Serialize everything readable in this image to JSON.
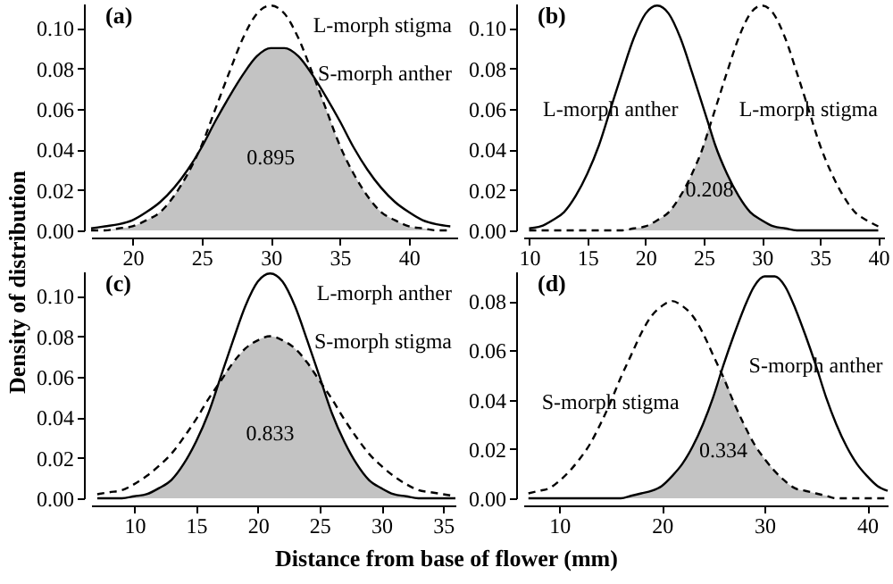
{
  "chart_data": [
    {
      "type": "line",
      "title": "(a)",
      "ylabel": "Density of distribution",
      "x": [
        17,
        18,
        19,
        20,
        21,
        22,
        23,
        24,
        25,
        26,
        27,
        28,
        29,
        30,
        31,
        32,
        33,
        34,
        35,
        36,
        37,
        38,
        39,
        40,
        41,
        42,
        43
      ],
      "xlim": [
        17,
        43.5
      ],
      "xticks": [
        20,
        25,
        30,
        35,
        40
      ],
      "ylim": [
        0,
        0.112
      ],
      "yticks": [
        {
          "value": 0,
          "label": "0.00"
        },
        {
          "value": 0.02,
          "label": "0.02"
        },
        {
          "value": 0.04,
          "label": "0.04"
        },
        {
          "value": 0.06,
          "label": "0.06"
        },
        {
          "value": 0.08,
          "label": "0.08"
        },
        {
          "value": 0.1,
          "label": "0.10"
        }
      ],
      "series": [
        {
          "type": "area",
          "color": "#c3c3c3",
          "values": [
            0,
            0,
            0.001,
            0.002,
            0.005,
            0.009,
            0.017,
            0.028,
            0.041,
            0.054,
            0.066,
            0.077,
            0.086,
            0.09,
            0.09,
            0.086,
            0.077,
            0.06,
            0.042,
            0.028,
            0.017,
            0.009,
            0.005,
            0.002,
            0.001,
            0,
            0
          ]
        },
        {
          "type": "line",
          "color": "#000000",
          "line_style": "dashed",
          "values": [
            0,
            0,
            0.001,
            0.002,
            0.005,
            0.009,
            0.017,
            0.028,
            0.042,
            0.06,
            0.078,
            0.095,
            0.107,
            0.111,
            0.107,
            0.095,
            0.078,
            0.06,
            0.042,
            0.028,
            0.017,
            0.009,
            0.005,
            0.002,
            0.001,
            0,
            0
          ]
        },
        {
          "type": "line",
          "color": "#000000",
          "line_style": "solid",
          "values": [
            0.001,
            0.002,
            0.003,
            0.005,
            0.009,
            0.014,
            0.021,
            0.03,
            0.041,
            0.054,
            0.066,
            0.077,
            0.086,
            0.09,
            0.09,
            0.086,
            0.077,
            0.066,
            0.054,
            0.041,
            0.03,
            0.021,
            0.014,
            0.009,
            0.005,
            0.003,
            0.002
          ]
        }
      ],
      "annotations": [
        "L-morph stigma",
        "S-morph anther",
        "0.895"
      ]
    },
    {
      "type": "line",
      "title": "(b)",
      "x": [
        10,
        11,
        12,
        13,
        14,
        15,
        16,
        17,
        18,
        19,
        20,
        21,
        22,
        23,
        24,
        25,
        25.5,
        26,
        27,
        28,
        29,
        30,
        31,
        32,
        33,
        34,
        35,
        36,
        37,
        38,
        39,
        40
      ],
      "xlim": [
        9.5,
        40.5
      ],
      "xticks": [
        10,
        15,
        20,
        25,
        30,
        35,
        40
      ],
      "ylim": [
        0,
        0.112
      ],
      "yticks": [
        {
          "value": 0,
          "label": "0.00"
        },
        {
          "value": 0.02,
          "label": "0.02"
        },
        {
          "value": 0.04,
          "label": "0.04"
        },
        {
          "value": 0.06,
          "label": "0.06"
        },
        {
          "value": 0.08,
          "label": "0.08"
        },
        {
          "value": 0.1,
          "label": "0.10"
        }
      ],
      "series": [
        {
          "type": "area",
          "color": "#c3c3c3",
          "values": [
            0,
            0,
            0,
            0,
            0,
            0,
            0,
            0,
            0,
            0.001,
            0.002,
            0.005,
            0.009,
            0.017,
            0.028,
            0.042,
            0.051,
            0.042,
            0.028,
            0.017,
            0.009,
            0.005,
            0.002,
            0.001,
            0,
            0,
            0,
            0,
            0,
            0,
            0,
            0
          ]
        },
        {
          "type": "line",
          "color": "#000000",
          "line_style": "solid",
          "values": [
            0.001,
            0.002,
            0.005,
            0.009,
            0.017,
            0.028,
            0.042,
            0.06,
            0.078,
            0.095,
            0.107,
            0.111,
            0.107,
            0.095,
            0.078,
            0.06,
            0.051,
            0.042,
            0.028,
            0.017,
            0.009,
            0.005,
            0.002,
            0.001,
            0,
            0,
            0,
            0,
            0,
            0,
            0,
            0
          ]
        },
        {
          "type": "line",
          "color": "#000000",
          "line_style": "dashed",
          "values": [
            0,
            0,
            0,
            0,
            0,
            0,
            0,
            0,
            0,
            0.001,
            0.002,
            0.005,
            0.009,
            0.017,
            0.028,
            0.042,
            0.051,
            0.06,
            0.078,
            0.095,
            0.107,
            0.111,
            0.107,
            0.095,
            0.078,
            0.06,
            0.042,
            0.028,
            0.017,
            0.009,
            0.005,
            0.002
          ]
        }
      ],
      "annotations": [
        {
          "text": "L-morph anther",
          "x": 17,
          "y": 0.06
        },
        {
          "text": "L-morph stigma",
          "x": 34,
          "y": 0.06
        },
        "0.208"
      ]
    },
    {
      "type": "line",
      "title": "(c)",
      "xlabel": "Distance from base of flower (mm)",
      "x": [
        7,
        8,
        9,
        10,
        11,
        12,
        13,
        14,
        15,
        16,
        17,
        18,
        19,
        20,
        21,
        22,
        23,
        24,
        25,
        26,
        27,
        28,
        29,
        30,
        31,
        32,
        33,
        34,
        35,
        36
      ],
      "xlim": [
        6.5,
        36
      ],
      "xticks": [
        10,
        15,
        20,
        25,
        30,
        35
      ],
      "ylim": [
        0,
        0.112
      ],
      "yticks": [
        {
          "value": 0,
          "label": "0.00"
        },
        {
          "value": 0.02,
          "label": "0.02"
        },
        {
          "value": 0.04,
          "label": "0.04"
        },
        {
          "value": 0.06,
          "label": "0.06"
        },
        {
          "value": 0.08,
          "label": "0.08"
        },
        {
          "value": 0.1,
          "label": "0.10"
        }
      ],
      "series": [
        {
          "type": "area",
          "color": "#c3c3c3",
          "values": [
            0,
            0,
            0,
            0.001,
            0.002,
            0.005,
            0.009,
            0.017,
            0.028,
            0.042,
            0.058,
            0.067,
            0.074,
            0.078,
            0.08,
            0.078,
            0.074,
            0.067,
            0.058,
            0.042,
            0.028,
            0.017,
            0.009,
            0.005,
            0.002,
            0.001,
            0,
            0,
            0,
            0
          ]
        },
        {
          "type": "line",
          "color": "#000000",
          "line_style": "solid",
          "values": [
            0,
            0,
            0,
            0.001,
            0.002,
            0.005,
            0.009,
            0.017,
            0.028,
            0.042,
            0.06,
            0.078,
            0.095,
            0.107,
            0.111,
            0.107,
            0.095,
            0.078,
            0.06,
            0.042,
            0.028,
            0.017,
            0.009,
            0.005,
            0.002,
            0.001,
            0,
            0,
            0,
            0
          ]
        },
        {
          "type": "line",
          "color": "#000000",
          "line_style": "dashed",
          "values": [
            0.002,
            0.003,
            0.004,
            0.007,
            0.011,
            0.016,
            0.022,
            0.03,
            0.039,
            0.049,
            0.058,
            0.067,
            0.074,
            0.078,
            0.08,
            0.078,
            0.074,
            0.067,
            0.058,
            0.049,
            0.039,
            0.03,
            0.022,
            0.016,
            0.011,
            0.007,
            0.004,
            0.003,
            0.002,
            0.001
          ]
        }
      ],
      "annotations": [
        "L-morph anther",
        "S-morph stigma",
        "0.833"
      ]
    },
    {
      "type": "line",
      "title": "(d)",
      "x": [
        7,
        8,
        9,
        10,
        11,
        12,
        13,
        14,
        15,
        16,
        17,
        18,
        19,
        20,
        21,
        22,
        23,
        24,
        25,
        26,
        27,
        28,
        29,
        30,
        31,
        32,
        33,
        34,
        35,
        36,
        37,
        38,
        39,
        40,
        41,
        42
      ],
      "xlim": [
        6.5,
        42
      ],
      "xticks": [
        10,
        20,
        30,
        40
      ],
      "ylim": [
        0,
        0.092
      ],
      "yticks": [
        {
          "value": 0,
          "label": "0.00"
        },
        {
          "value": 0.02,
          "label": "0.02"
        },
        {
          "value": 0.04,
          "label": "0.04"
        },
        {
          "value": 0.06,
          "label": "0.06"
        },
        {
          "value": 0.08,
          "label": "0.08"
        }
      ],
      "series": [
        {
          "type": "area",
          "color": "#c3c3c3",
          "values": [
            0,
            0,
            0,
            0,
            0,
            0,
            0,
            0,
            0,
            0,
            0.001,
            0.002,
            0.003,
            0.005,
            0.009,
            0.014,
            0.021,
            0.03,
            0.041,
            0.049,
            0.039,
            0.03,
            0.022,
            0.016,
            0.011,
            0.007,
            0.004,
            0.003,
            0.002,
            0.001,
            0,
            0,
            0,
            0,
            0,
            0
          ]
        },
        {
          "type": "line",
          "color": "#000000",
          "line_style": "dashed",
          "values": [
            0.002,
            0.003,
            0.004,
            0.007,
            0.011,
            0.016,
            0.022,
            0.03,
            0.039,
            0.049,
            0.058,
            0.067,
            0.074,
            0.078,
            0.08,
            0.078,
            0.074,
            0.067,
            0.058,
            0.049,
            0.039,
            0.03,
            0.022,
            0.016,
            0.011,
            0.007,
            0.004,
            0.003,
            0.002,
            0.001,
            0,
            0,
            0,
            0,
            0,
            0
          ]
        },
        {
          "type": "line",
          "color": "#000000",
          "line_style": "solid",
          "values": [
            0,
            0,
            0,
            0,
            0,
            0,
            0,
            0,
            0,
            0,
            0.001,
            0.002,
            0.003,
            0.005,
            0.009,
            0.014,
            0.021,
            0.03,
            0.041,
            0.054,
            0.066,
            0.077,
            0.086,
            0.09,
            0.09,
            0.086,
            0.077,
            0.066,
            0.054,
            0.041,
            0.03,
            0.021,
            0.014,
            0.009,
            0.005,
            0.003
          ]
        }
      ],
      "annotations": [
        {
          "text": "S-morph stigma",
          "x": 15,
          "y": 0.039
        },
        {
          "text": "S-morph anther",
          "x": 35,
          "y": 0.054
        },
        "0.334"
      ]
    }
  ]
}
